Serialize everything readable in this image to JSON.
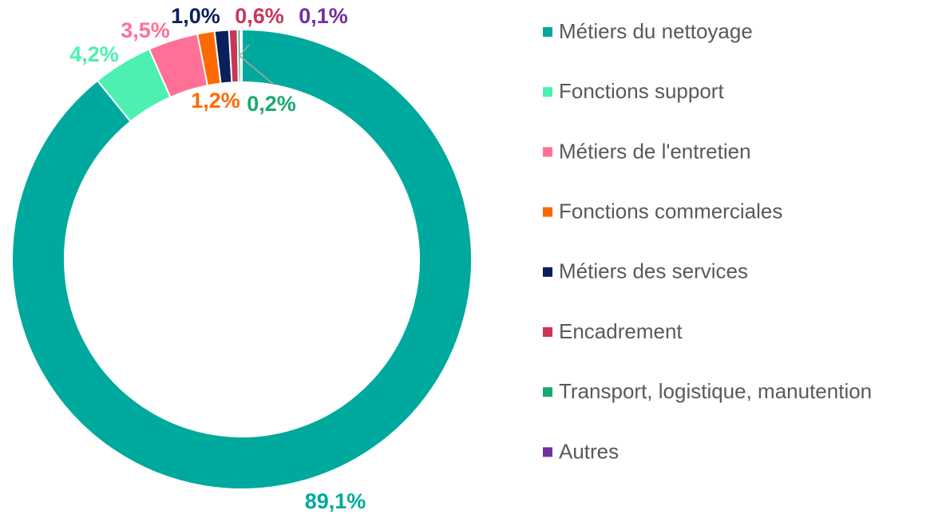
{
  "chart_data": {
    "type": "donut",
    "categories": [
      "Métiers du nettoyage",
      "Fonctions support",
      "Métiers de l'entretien",
      "Fonctions commerciales",
      "Métiers des services",
      "Encadrement",
      "Transport, logistique, manutention",
      "Autres"
    ],
    "values": [
      89.1,
      4.2,
      3.5,
      1.2,
      1.0,
      0.6,
      0.2,
      0.1
    ],
    "value_labels": [
      "89,1%",
      "4,2%",
      "3,5%",
      "1,2%",
      "1,0%",
      "0,6%",
      "0,2%",
      "0,1%"
    ],
    "colors": [
      "#00a99d",
      "#4cf0b0",
      "#ff7096",
      "#ff6a00",
      "#0a1f5c",
      "#c8365a",
      "#1aa870",
      "#7030a0"
    ],
    "legend": "right"
  }
}
